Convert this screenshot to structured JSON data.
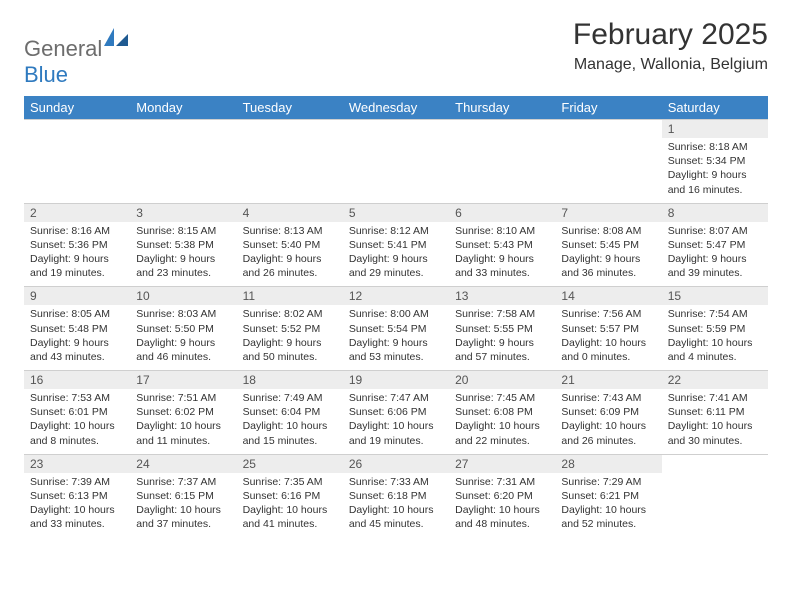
{
  "brand": {
    "general": "General",
    "blue": "Blue"
  },
  "title": "February 2025",
  "location": "Manage, Wallonia, Belgium",
  "colors": {
    "header_bg": "#3b82c4",
    "header_text": "#ffffff",
    "daynum_bg": "#ededed",
    "text": "#333333",
    "logo_gray": "#6d6d6d",
    "logo_blue": "#2f7abf",
    "border": "#cfcfcf"
  },
  "day_names": [
    "Sunday",
    "Monday",
    "Tuesday",
    "Wednesday",
    "Thursday",
    "Friday",
    "Saturday"
  ],
  "weeks": [
    [
      null,
      null,
      null,
      null,
      null,
      null,
      {
        "n": "1",
        "sr": "Sunrise: 8:18 AM",
        "ss": "Sunset: 5:34 PM",
        "d1": "Daylight: 9 hours",
        "d2": "and 16 minutes."
      }
    ],
    [
      {
        "n": "2",
        "sr": "Sunrise: 8:16 AM",
        "ss": "Sunset: 5:36 PM",
        "d1": "Daylight: 9 hours",
        "d2": "and 19 minutes."
      },
      {
        "n": "3",
        "sr": "Sunrise: 8:15 AM",
        "ss": "Sunset: 5:38 PM",
        "d1": "Daylight: 9 hours",
        "d2": "and 23 minutes."
      },
      {
        "n": "4",
        "sr": "Sunrise: 8:13 AM",
        "ss": "Sunset: 5:40 PM",
        "d1": "Daylight: 9 hours",
        "d2": "and 26 minutes."
      },
      {
        "n": "5",
        "sr": "Sunrise: 8:12 AM",
        "ss": "Sunset: 5:41 PM",
        "d1": "Daylight: 9 hours",
        "d2": "and 29 minutes."
      },
      {
        "n": "6",
        "sr": "Sunrise: 8:10 AM",
        "ss": "Sunset: 5:43 PM",
        "d1": "Daylight: 9 hours",
        "d2": "and 33 minutes."
      },
      {
        "n": "7",
        "sr": "Sunrise: 8:08 AM",
        "ss": "Sunset: 5:45 PM",
        "d1": "Daylight: 9 hours",
        "d2": "and 36 minutes."
      },
      {
        "n": "8",
        "sr": "Sunrise: 8:07 AM",
        "ss": "Sunset: 5:47 PM",
        "d1": "Daylight: 9 hours",
        "d2": "and 39 minutes."
      }
    ],
    [
      {
        "n": "9",
        "sr": "Sunrise: 8:05 AM",
        "ss": "Sunset: 5:48 PM",
        "d1": "Daylight: 9 hours",
        "d2": "and 43 minutes."
      },
      {
        "n": "10",
        "sr": "Sunrise: 8:03 AM",
        "ss": "Sunset: 5:50 PM",
        "d1": "Daylight: 9 hours",
        "d2": "and 46 minutes."
      },
      {
        "n": "11",
        "sr": "Sunrise: 8:02 AM",
        "ss": "Sunset: 5:52 PM",
        "d1": "Daylight: 9 hours",
        "d2": "and 50 minutes."
      },
      {
        "n": "12",
        "sr": "Sunrise: 8:00 AM",
        "ss": "Sunset: 5:54 PM",
        "d1": "Daylight: 9 hours",
        "d2": "and 53 minutes."
      },
      {
        "n": "13",
        "sr": "Sunrise: 7:58 AM",
        "ss": "Sunset: 5:55 PM",
        "d1": "Daylight: 9 hours",
        "d2": "and 57 minutes."
      },
      {
        "n": "14",
        "sr": "Sunrise: 7:56 AM",
        "ss": "Sunset: 5:57 PM",
        "d1": "Daylight: 10 hours",
        "d2": "and 0 minutes."
      },
      {
        "n": "15",
        "sr": "Sunrise: 7:54 AM",
        "ss": "Sunset: 5:59 PM",
        "d1": "Daylight: 10 hours",
        "d2": "and 4 minutes."
      }
    ],
    [
      {
        "n": "16",
        "sr": "Sunrise: 7:53 AM",
        "ss": "Sunset: 6:01 PM",
        "d1": "Daylight: 10 hours",
        "d2": "and 8 minutes."
      },
      {
        "n": "17",
        "sr": "Sunrise: 7:51 AM",
        "ss": "Sunset: 6:02 PM",
        "d1": "Daylight: 10 hours",
        "d2": "and 11 minutes."
      },
      {
        "n": "18",
        "sr": "Sunrise: 7:49 AM",
        "ss": "Sunset: 6:04 PM",
        "d1": "Daylight: 10 hours",
        "d2": "and 15 minutes."
      },
      {
        "n": "19",
        "sr": "Sunrise: 7:47 AM",
        "ss": "Sunset: 6:06 PM",
        "d1": "Daylight: 10 hours",
        "d2": "and 19 minutes."
      },
      {
        "n": "20",
        "sr": "Sunrise: 7:45 AM",
        "ss": "Sunset: 6:08 PM",
        "d1": "Daylight: 10 hours",
        "d2": "and 22 minutes."
      },
      {
        "n": "21",
        "sr": "Sunrise: 7:43 AM",
        "ss": "Sunset: 6:09 PM",
        "d1": "Daylight: 10 hours",
        "d2": "and 26 minutes."
      },
      {
        "n": "22",
        "sr": "Sunrise: 7:41 AM",
        "ss": "Sunset: 6:11 PM",
        "d1": "Daylight: 10 hours",
        "d2": "and 30 minutes."
      }
    ],
    [
      {
        "n": "23",
        "sr": "Sunrise: 7:39 AM",
        "ss": "Sunset: 6:13 PM",
        "d1": "Daylight: 10 hours",
        "d2": "and 33 minutes."
      },
      {
        "n": "24",
        "sr": "Sunrise: 7:37 AM",
        "ss": "Sunset: 6:15 PM",
        "d1": "Daylight: 10 hours",
        "d2": "and 37 minutes."
      },
      {
        "n": "25",
        "sr": "Sunrise: 7:35 AM",
        "ss": "Sunset: 6:16 PM",
        "d1": "Daylight: 10 hours",
        "d2": "and 41 minutes."
      },
      {
        "n": "26",
        "sr": "Sunrise: 7:33 AM",
        "ss": "Sunset: 6:18 PM",
        "d1": "Daylight: 10 hours",
        "d2": "and 45 minutes."
      },
      {
        "n": "27",
        "sr": "Sunrise: 7:31 AM",
        "ss": "Sunset: 6:20 PM",
        "d1": "Daylight: 10 hours",
        "d2": "and 48 minutes."
      },
      {
        "n": "28",
        "sr": "Sunrise: 7:29 AM",
        "ss": "Sunset: 6:21 PM",
        "d1": "Daylight: 10 hours",
        "d2": "and 52 minutes."
      },
      null
    ]
  ]
}
